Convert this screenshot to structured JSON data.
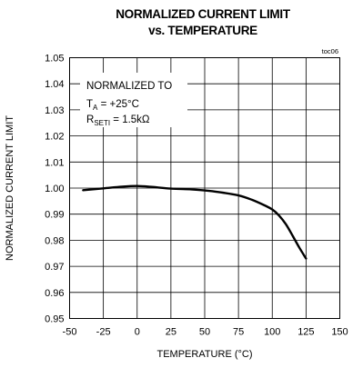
{
  "chart_data": {
    "type": "line",
    "title_line1": "NORMALIZED CURRENT LIMIT",
    "title_line2": "vs. TEMPERATURE",
    "figure_id": "toc06",
    "xlabel": "TEMPERATURE (°C)",
    "ylabel": "NORMALIZED CURRENT LIMIT",
    "xlim": [
      -50,
      150
    ],
    "ylim": [
      0.95,
      1.05
    ],
    "x_ticks": [
      "-50",
      "-25",
      "0",
      "25",
      "50",
      "75",
      "100",
      "125",
      "150"
    ],
    "y_ticks": [
      "1.05",
      "1.04",
      "1.03",
      "1.02",
      "1.01",
      "1.00",
      "0.99",
      "0.98",
      "0.97",
      "0.96",
      "0.95"
    ],
    "grid": true,
    "annotation": {
      "line1": "NORMALIZED TO",
      "line2_var": "T",
      "line2_sub": "A",
      "line2_rest": " = +25°C",
      "line3_var": "R",
      "line3_sub": "SETI",
      "line3_rest": " = 1.5kΩ"
    },
    "series": [
      {
        "x": [
          -40,
          -25,
          -10,
          0,
          10,
          25,
          40,
          50,
          60,
          75,
          85,
          95,
          100,
          105,
          110,
          115,
          120,
          125
        ],
        "y": [
          0.9992,
          0.9999,
          1.0006,
          1.0008,
          1.0005,
          0.9998,
          0.9995,
          0.9991,
          0.9985,
          0.9972,
          0.9955,
          0.9932,
          0.9918,
          0.9895,
          0.9862,
          0.9818,
          0.9772,
          0.973
        ]
      }
    ]
  }
}
